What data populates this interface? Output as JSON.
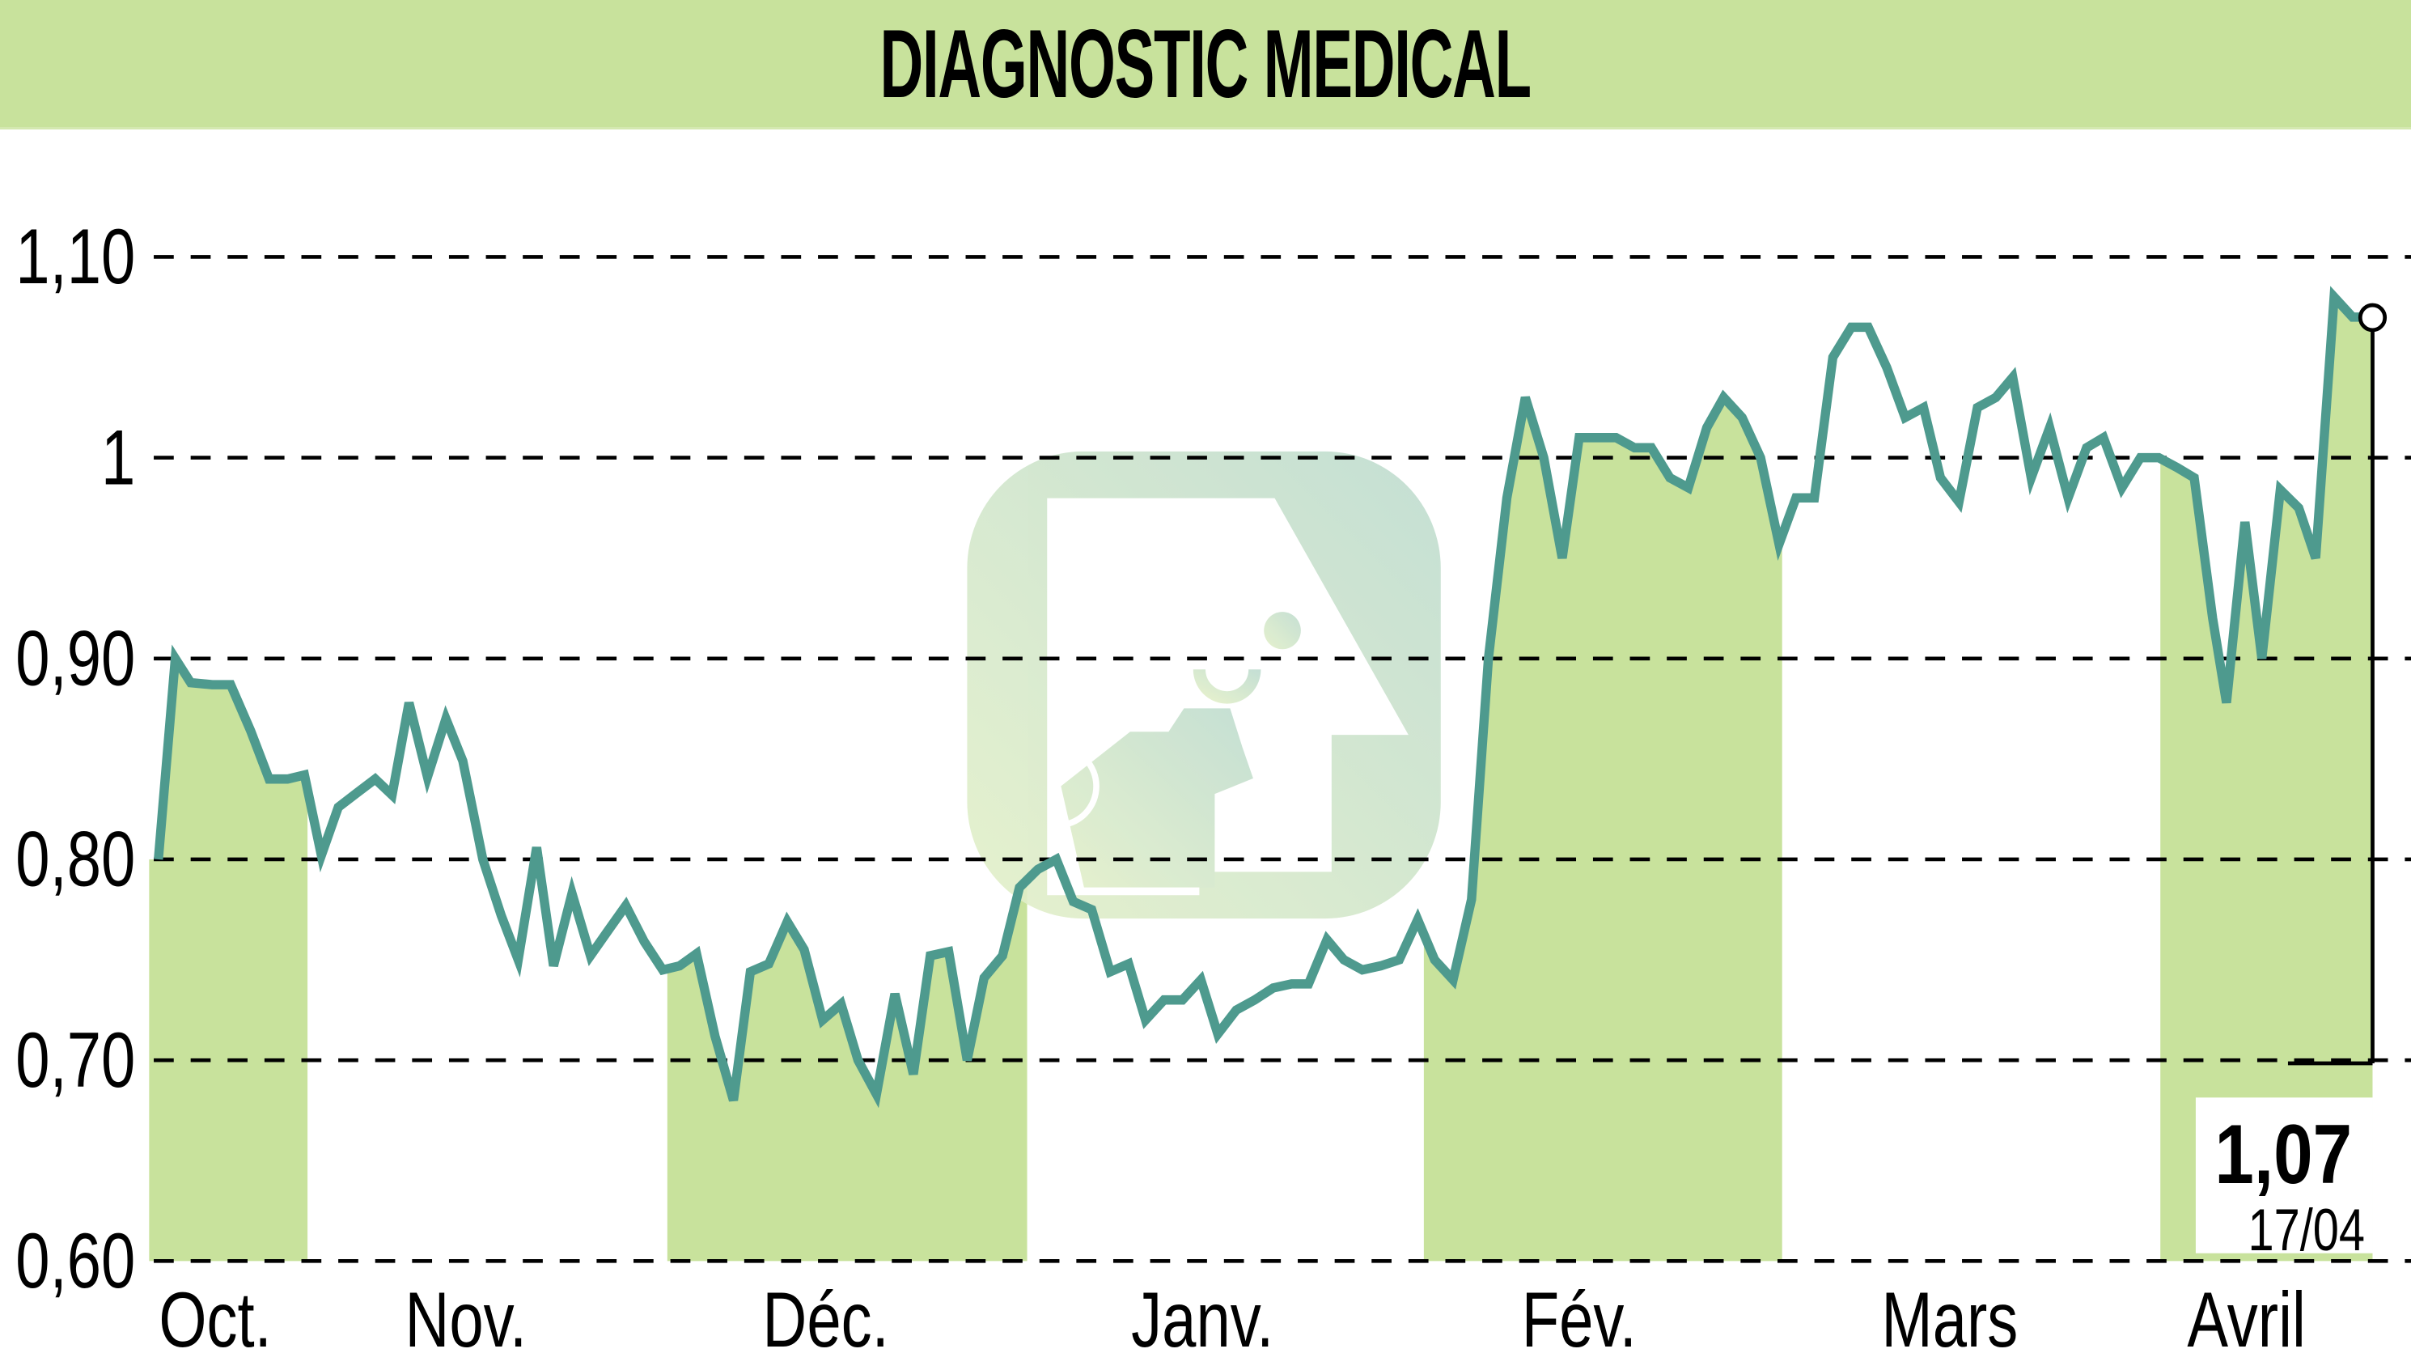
{
  "header": {
    "title": "DIAGNOSTIC MEDICAL",
    "background_color": "#c8e29c"
  },
  "colors": {
    "line": "#4e9a8e",
    "band_fill": "#c8e29c",
    "gridline": "#000000",
    "watermark": "#b9dcc4"
  },
  "y_axis": {
    "ticks": [
      {
        "label": "1,10",
        "value": 1.1
      },
      {
        "label": "1",
        "value": 1.0
      },
      {
        "label": "0,90",
        "value": 0.9
      },
      {
        "label": "0,80",
        "value": 0.8
      },
      {
        "label": "0,70",
        "value": 0.7
      },
      {
        "label": "0,60",
        "value": 0.6
      }
    ]
  },
  "x_axis": {
    "months": [
      "Oct.",
      "Nov.",
      "Déc.",
      "Janv.",
      "Fév.",
      "Mars",
      "Avril"
    ]
  },
  "last_value": {
    "price": "1,07",
    "date": "17/04"
  },
  "chart_data": {
    "type": "line",
    "title": "DIAGNOSTIC MEDICAL",
    "xlabel": "",
    "ylabel": "",
    "ylim": [
      0.6,
      1.1
    ],
    "grid": "horizontal dashed",
    "legend": "none",
    "x_ticks": [
      "Oct.",
      "Nov.",
      "Déc.",
      "Janv.",
      "Fév.",
      "Mars",
      "Avril"
    ],
    "y_ticks": [
      "0,60",
      "0,70",
      "0,80",
      "0,90",
      "1",
      "1,10"
    ],
    "shaded_months": [
      "Oct.",
      "Déc.",
      "Fév.",
      "Avril"
    ],
    "annotation": {
      "value": "1,07",
      "date": "17/04"
    },
    "series": [
      {
        "name": "DIAGNOSTIC MEDICAL",
        "x": [
          103,
          114,
          124,
          138,
          150,
          163,
          175,
          187,
          198,
          209,
          220,
          232,
          244,
          255,
          266,
          278,
          290,
          301,
          314,
          326,
          337,
          349,
          360,
          372,
          384,
          395,
          407,
          419,
          431,
          442,
          453,
          465,
          477,
          488,
          500,
          512,
          523,
          535,
          547,
          558,
          570,
          582,
          594,
          605,
          617,
          629,
          640,
          652,
          663,
          675,
          687,
          698,
          710,
          722,
          734,
          745,
          757,
          769,
          781,
          792,
          804,
          816,
          828,
          840,
          851,
          863,
          874,
          886,
          898,
          910,
          922,
          933,
          945,
          957,
          968,
          980,
          992,
          1004,
          1016,
          1027,
          1039,
          1051,
          1063,
          1074,
          1086,
          1098,
          1110,
          1121,
          1133,
          1145,
          1157,
          1168,
          1180,
          1192,
          1204,
          1215,
          1227,
          1239,
          1251,
          1262,
          1274,
          1286,
          1298,
          1309,
          1321,
          1333,
          1345,
          1357,
          1368,
          1380,
          1392,
          1404,
          1416,
          1427,
          1439,
          1448,
          1460,
          1471,
          1483,
          1495,
          1506,
          1518,
          1530,
          1543
        ],
        "values": [
          0.8,
          0.9,
          0.888,
          0.887,
          0.887,
          0.864,
          0.84,
          0.84,
          0.842,
          0.802,
          0.826,
          0.833,
          0.84,
          0.832,
          0.878,
          0.841,
          0.87,
          0.849,
          0.8,
          0.772,
          0.75,
          0.806,
          0.747,
          0.783,
          0.752,
          0.764,
          0.777,
          0.759,
          0.745,
          0.747,
          0.753,
          0.712,
          0.68,
          0.744,
          0.748,
          0.769,
          0.755,
          0.72,
          0.728,
          0.7,
          0.683,
          0.733,
          0.693,
          0.752,
          0.754,
          0.7,
          0.741,
          0.752,
          0.786,
          0.795,
          0.8,
          0.779,
          0.775,
          0.744,
          0.748,
          0.72,
          0.73,
          0.73,
          0.74,
          0.713,
          0.725,
          0.73,
          0.736,
          0.738,
          0.738,
          0.76,
          0.75,
          0.745,
          0.747,
          0.75,
          0.77,
          0.75,
          0.74,
          0.78,
          0.9,
          0.98,
          1.03,
          1.0,
          0.95,
          1.01,
          1.01,
          1.01,
          1.005,
          1.005,
          0.99,
          0.985,
          1.015,
          1.03,
          1.02,
          1.0,
          0.957,
          0.98,
          0.98,
          1.05,
          1.065,
          1.065,
          1.045,
          1.02,
          1.025,
          0.99,
          0.978,
          1.025,
          1.03,
          1.04,
          0.99,
          1.015,
          0.98,
          1.005,
          1.01,
          0.985,
          1.0,
          1.0,
          0.995,
          0.99,
          0.92,
          0.878,
          0.968,
          0.9,
          0.984,
          0.975,
          0.95,
          1.08,
          1.07,
          1.07
        ]
      }
    ]
  }
}
